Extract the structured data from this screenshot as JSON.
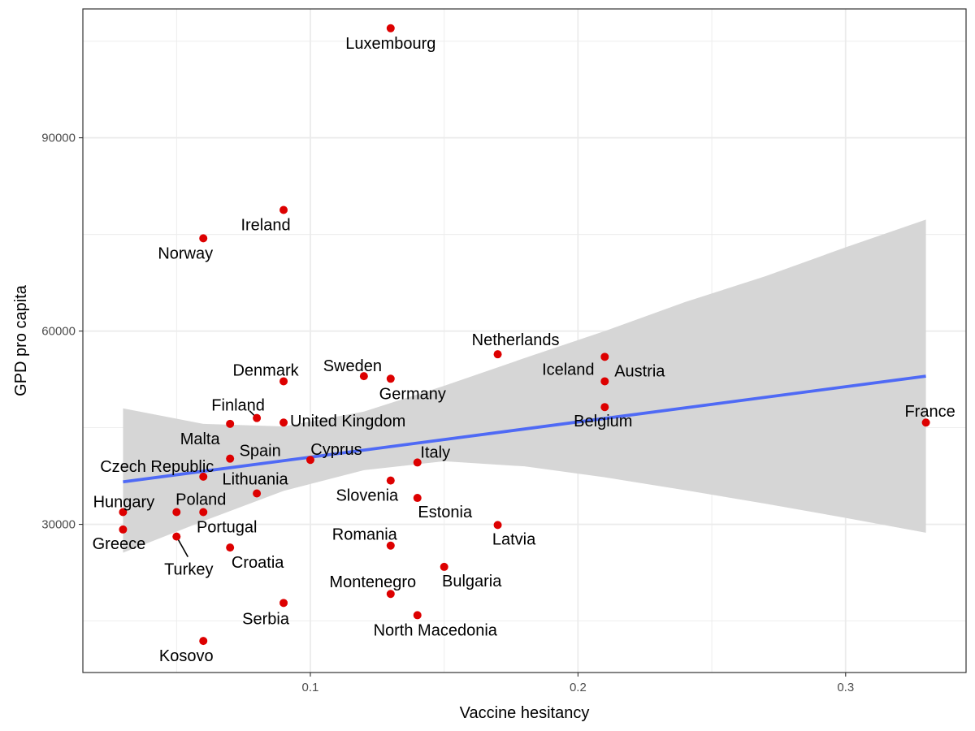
{
  "chart_data": {
    "type": "scatter",
    "title": "",
    "xlabel": "Vaccine hesitancy",
    "ylabel": "GPD pro capita",
    "xlim": [
      0.015,
      0.345
    ],
    "ylim": [
      7000,
      110000
    ],
    "x_ticks": [
      0.1,
      0.2,
      0.3
    ],
    "x_tick_labels": [
      "0.1",
      "0.2",
      "0.3"
    ],
    "y_ticks": [
      30000,
      60000,
      90000
    ],
    "y_tick_labels": [
      "30000",
      "60000",
      "90000"
    ],
    "x_minor_gridlines": [
      0.05,
      0.15,
      0.25
    ],
    "y_minor_gridlines": [
      15000,
      45000,
      75000,
      105000
    ],
    "grid": true,
    "legend": "none",
    "colors": {
      "points": "#dd0000",
      "trend_line": "#4f6af5",
      "confidence_band": "#d6d6d6",
      "grid": "#ebebeb",
      "panel_border": "#333333"
    },
    "points": [
      {
        "label": "Luxembourg",
        "x": 0.13,
        "y": 107000
      },
      {
        "label": "Ireland",
        "x": 0.09,
        "y": 78800
      },
      {
        "label": "Norway",
        "x": 0.06,
        "y": 74400
      },
      {
        "label": "Netherlands",
        "x": 0.17,
        "y": 56400
      },
      {
        "label": "Iceland",
        "x": 0.21,
        "y": 56000
      },
      {
        "label": "Austria",
        "x": 0.21,
        "y": 52200
      },
      {
        "label": "Belgium",
        "x": 0.21,
        "y": 48200
      },
      {
        "label": "France",
        "x": 0.33,
        "y": 45800
      },
      {
        "label": "Sweden",
        "x": 0.12,
        "y": 53000
      },
      {
        "label": "Germany",
        "x": 0.13,
        "y": 52600
      },
      {
        "label": "Denmark",
        "x": 0.09,
        "y": 52200
      },
      {
        "label": "Finland",
        "x": 0.08,
        "y": 46500
      },
      {
        "label": "United Kingdom",
        "x": 0.09,
        "y": 45800
      },
      {
        "label": "Malta",
        "x": 0.07,
        "y": 45600
      },
      {
        "label": "Spain",
        "x": 0.07,
        "y": 40200
      },
      {
        "label": "Cyprus",
        "x": 0.1,
        "y": 40000
      },
      {
        "label": "Italy",
        "x": 0.14,
        "y": 39600
      },
      {
        "label": "Czech Republic",
        "x": 0.06,
        "y": 37400
      },
      {
        "label": "Slovenia",
        "x": 0.13,
        "y": 36800
      },
      {
        "label": "Lithuania",
        "x": 0.08,
        "y": 34800
      },
      {
        "label": "Estonia",
        "x": 0.14,
        "y": 34100
      },
      {
        "label": "Hungary",
        "x": 0.03,
        "y": 31900
      },
      {
        "label": "Poland",
        "x": 0.05,
        "y": 31900
      },
      {
        "label": "Portugal",
        "x": 0.06,
        "y": 31900
      },
      {
        "label": "Latvia",
        "x": 0.17,
        "y": 29900
      },
      {
        "label": "Greece",
        "x": 0.03,
        "y": 29200
      },
      {
        "label": "Turkey",
        "x": 0.05,
        "y": 28100
      },
      {
        "label": "Romania",
        "x": 0.13,
        "y": 26700
      },
      {
        "label": "Croatia",
        "x": 0.07,
        "y": 26400
      },
      {
        "label": "Bulgaria",
        "x": 0.15,
        "y": 23400
      },
      {
        "label": "Montenegro",
        "x": 0.13,
        "y": 19200
      },
      {
        "label": "Serbia",
        "x": 0.09,
        "y": 17800
      },
      {
        "label": "North Macedonia",
        "x": 0.14,
        "y": 15900
      },
      {
        "label": "Kosovo",
        "x": 0.06,
        "y": 11900
      }
    ],
    "trend_line": {
      "method": "linear regression",
      "x": [
        0.03,
        0.33
      ],
      "y": [
        36600,
        53000
      ]
    },
    "confidence_band": {
      "x": [
        0.03,
        0.06,
        0.09,
        0.12,
        0.15,
        0.18,
        0.21,
        0.24,
        0.27,
        0.3,
        0.33
      ],
      "upper": [
        48000,
        45600,
        45200,
        47500,
        51500,
        55800,
        60000,
        64500,
        68500,
        73000,
        77300
      ],
      "lower": [
        25600,
        30500,
        35200,
        38400,
        39800,
        39000,
        37300,
        35300,
        33200,
        31000,
        28700
      ]
    }
  }
}
